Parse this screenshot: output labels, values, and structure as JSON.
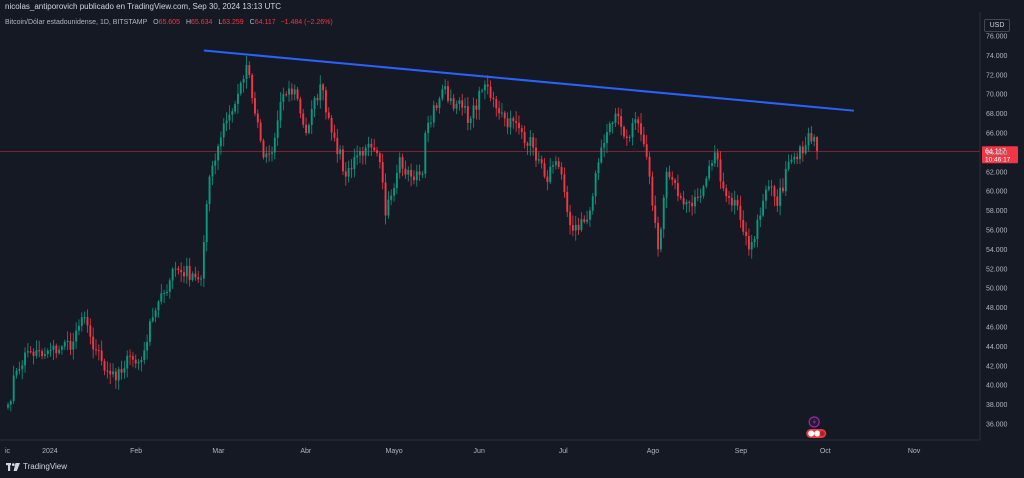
{
  "header": {
    "attribution": "nicolas_antiporovich publicado en TradingView.com, Sep 30, 2024 13:13 UTC"
  },
  "legend": {
    "symbol": "Bitcoin/Dólar estadounidense, 1D, BITSTAMP",
    "open_label": "O",
    "open": "65.605",
    "high_label": "H",
    "high": "65.634",
    "low_label": "L",
    "low": "63.259",
    "close_label": "C",
    "close": "64.117",
    "change": "−1.484 (−2.26%)"
  },
  "currency_button": "USD",
  "price_label": {
    "price": "64.117",
    "countdown": "10:46:17"
  },
  "brand": "TradingView",
  "colors": {
    "background": "#151924",
    "up": "#089981",
    "down": "#f23645",
    "trendline": "#2962ff",
    "axis_text": "#b2b5be",
    "event_icon": "#9c27b0"
  },
  "chart_data": {
    "type": "candlestick",
    "title": "Bitcoin/Dólar estadounidense, 1D, BITSTAMP",
    "x_tick_labels": [
      "ic",
      "2024",
      "Feb",
      "Mar",
      "Abr",
      "Mayo",
      "Jun",
      "Jul",
      "Ago",
      "Sep",
      "Oct",
      "Nov"
    ],
    "y_tick_labels": [
      "36.000",
      "38.000",
      "40.000",
      "42.000",
      "44.000",
      "46.000",
      "48.000",
      "50.000",
      "52.000",
      "54.000",
      "56.000",
      "58.000",
      "60.000",
      "62.000",
      "64.000",
      "66.000",
      "68.000",
      "70.000",
      "72.000",
      "74.000",
      "76.000"
    ],
    "ylim": [
      35000,
      77000
    ],
    "grid": false,
    "current_price": 64117,
    "anchors": [
      {
        "date": "2023-12-20",
        "close": 38000
      },
      {
        "date": "2023-12-23",
        "close": 41500
      },
      {
        "date": "2023-12-27",
        "close": 43500
      },
      {
        "date": "2024-01-01",
        "close": 43000
      },
      {
        "date": "2024-01-08",
        "close": 44000
      },
      {
        "date": "2024-01-12",
        "close": 44500
      },
      {
        "date": "2024-01-15",
        "close": 47000
      },
      {
        "date": "2024-01-18",
        "close": 45000
      },
      {
        "date": "2024-01-23",
        "close": 41500
      },
      {
        "date": "2024-01-27",
        "close": 40500
      },
      {
        "date": "2024-02-01",
        "close": 43000
      },
      {
        "date": "2024-02-05",
        "close": 42600
      },
      {
        "date": "2024-02-09",
        "close": 47000
      },
      {
        "date": "2024-02-13",
        "close": 49500
      },
      {
        "date": "2024-02-16",
        "close": 52000
      },
      {
        "date": "2024-02-23",
        "close": 51500
      },
      {
        "date": "2024-02-26",
        "close": 51000
      },
      {
        "date": "2024-02-29",
        "close": 61500
      },
      {
        "date": "2024-03-05",
        "close": 67000
      },
      {
        "date": "2024-03-09",
        "close": 69000
      },
      {
        "date": "2024-03-13",
        "close": 73000
      },
      {
        "date": "2024-03-16",
        "close": 68000
      },
      {
        "date": "2024-03-19",
        "close": 63500
      },
      {
        "date": "2024-03-22",
        "close": 64000
      },
      {
        "date": "2024-03-26",
        "close": 70000
      },
      {
        "date": "2024-03-30",
        "close": 70500
      },
      {
        "date": "2024-04-03",
        "close": 66000
      },
      {
        "date": "2024-04-08",
        "close": 71000
      },
      {
        "date": "2024-04-13",
        "close": 65500
      },
      {
        "date": "2024-04-17",
        "close": 61500
      },
      {
        "date": "2024-04-20",
        "close": 63500
      },
      {
        "date": "2024-04-24",
        "close": 64500
      },
      {
        "date": "2024-04-29",
        "close": 63000
      },
      {
        "date": "2024-05-01",
        "close": 57500
      },
      {
        "date": "2024-05-06",
        "close": 63500
      },
      {
        "date": "2024-05-10",
        "close": 61500
      },
      {
        "date": "2024-05-14",
        "close": 61800
      },
      {
        "date": "2024-05-15",
        "close": 66000
      },
      {
        "date": "2024-05-21",
        "close": 70500
      },
      {
        "date": "2024-05-26",
        "close": 69000
      },
      {
        "date": "2024-05-31",
        "close": 67500
      },
      {
        "date": "2024-06-05",
        "close": 71000
      },
      {
        "date": "2024-06-08",
        "close": 69500
      },
      {
        "date": "2024-06-12",
        "close": 67500
      },
      {
        "date": "2024-06-17",
        "close": 66500
      },
      {
        "date": "2024-06-22",
        "close": 64500
      },
      {
        "date": "2024-06-26",
        "close": 61500
      },
      {
        "date": "2024-07-01",
        "close": 62500
      },
      {
        "date": "2024-07-05",
        "close": 56500
      },
      {
        "date": "2024-07-08",
        "close": 56000
      },
      {
        "date": "2024-07-12",
        "close": 58000
      },
      {
        "date": "2024-07-16",
        "close": 64500
      },
      {
        "date": "2024-07-21",
        "close": 68000
      },
      {
        "date": "2024-07-25",
        "close": 65500
      },
      {
        "date": "2024-07-29",
        "close": 67000
      },
      {
        "date": "2024-08-02",
        "close": 61500
      },
      {
        "date": "2024-08-05",
        "close": 54000
      },
      {
        "date": "2024-08-08",
        "close": 62000
      },
      {
        "date": "2024-08-12",
        "close": 59500
      },
      {
        "date": "2024-08-16",
        "close": 58800
      },
      {
        "date": "2024-08-20",
        "close": 59500
      },
      {
        "date": "2024-08-25",
        "close": 64000
      },
      {
        "date": "2024-08-29",
        "close": 59500
      },
      {
        "date": "2024-09-02",
        "close": 58500
      },
      {
        "date": "2024-09-06",
        "close": 54000
      },
      {
        "date": "2024-09-10",
        "close": 57500
      },
      {
        "date": "2024-09-13",
        "close": 60500
      },
      {
        "date": "2024-09-16",
        "close": 58500
      },
      {
        "date": "2024-09-20",
        "close": 63000
      },
      {
        "date": "2024-09-23",
        "close": 63300
      },
      {
        "date": "2024-09-27",
        "close": 66000
      },
      {
        "date": "2024-09-29",
        "close": 65600
      },
      {
        "date": "2024-09-30",
        "close": 64117
      }
    ],
    "trendline": [
      {
        "date": "2024-02-27",
        "price": 74500
      },
      {
        "date": "2024-10-13",
        "price": 68300
      }
    ],
    "event_markers": [
      "lightning-icon",
      "flag-icon"
    ]
  }
}
